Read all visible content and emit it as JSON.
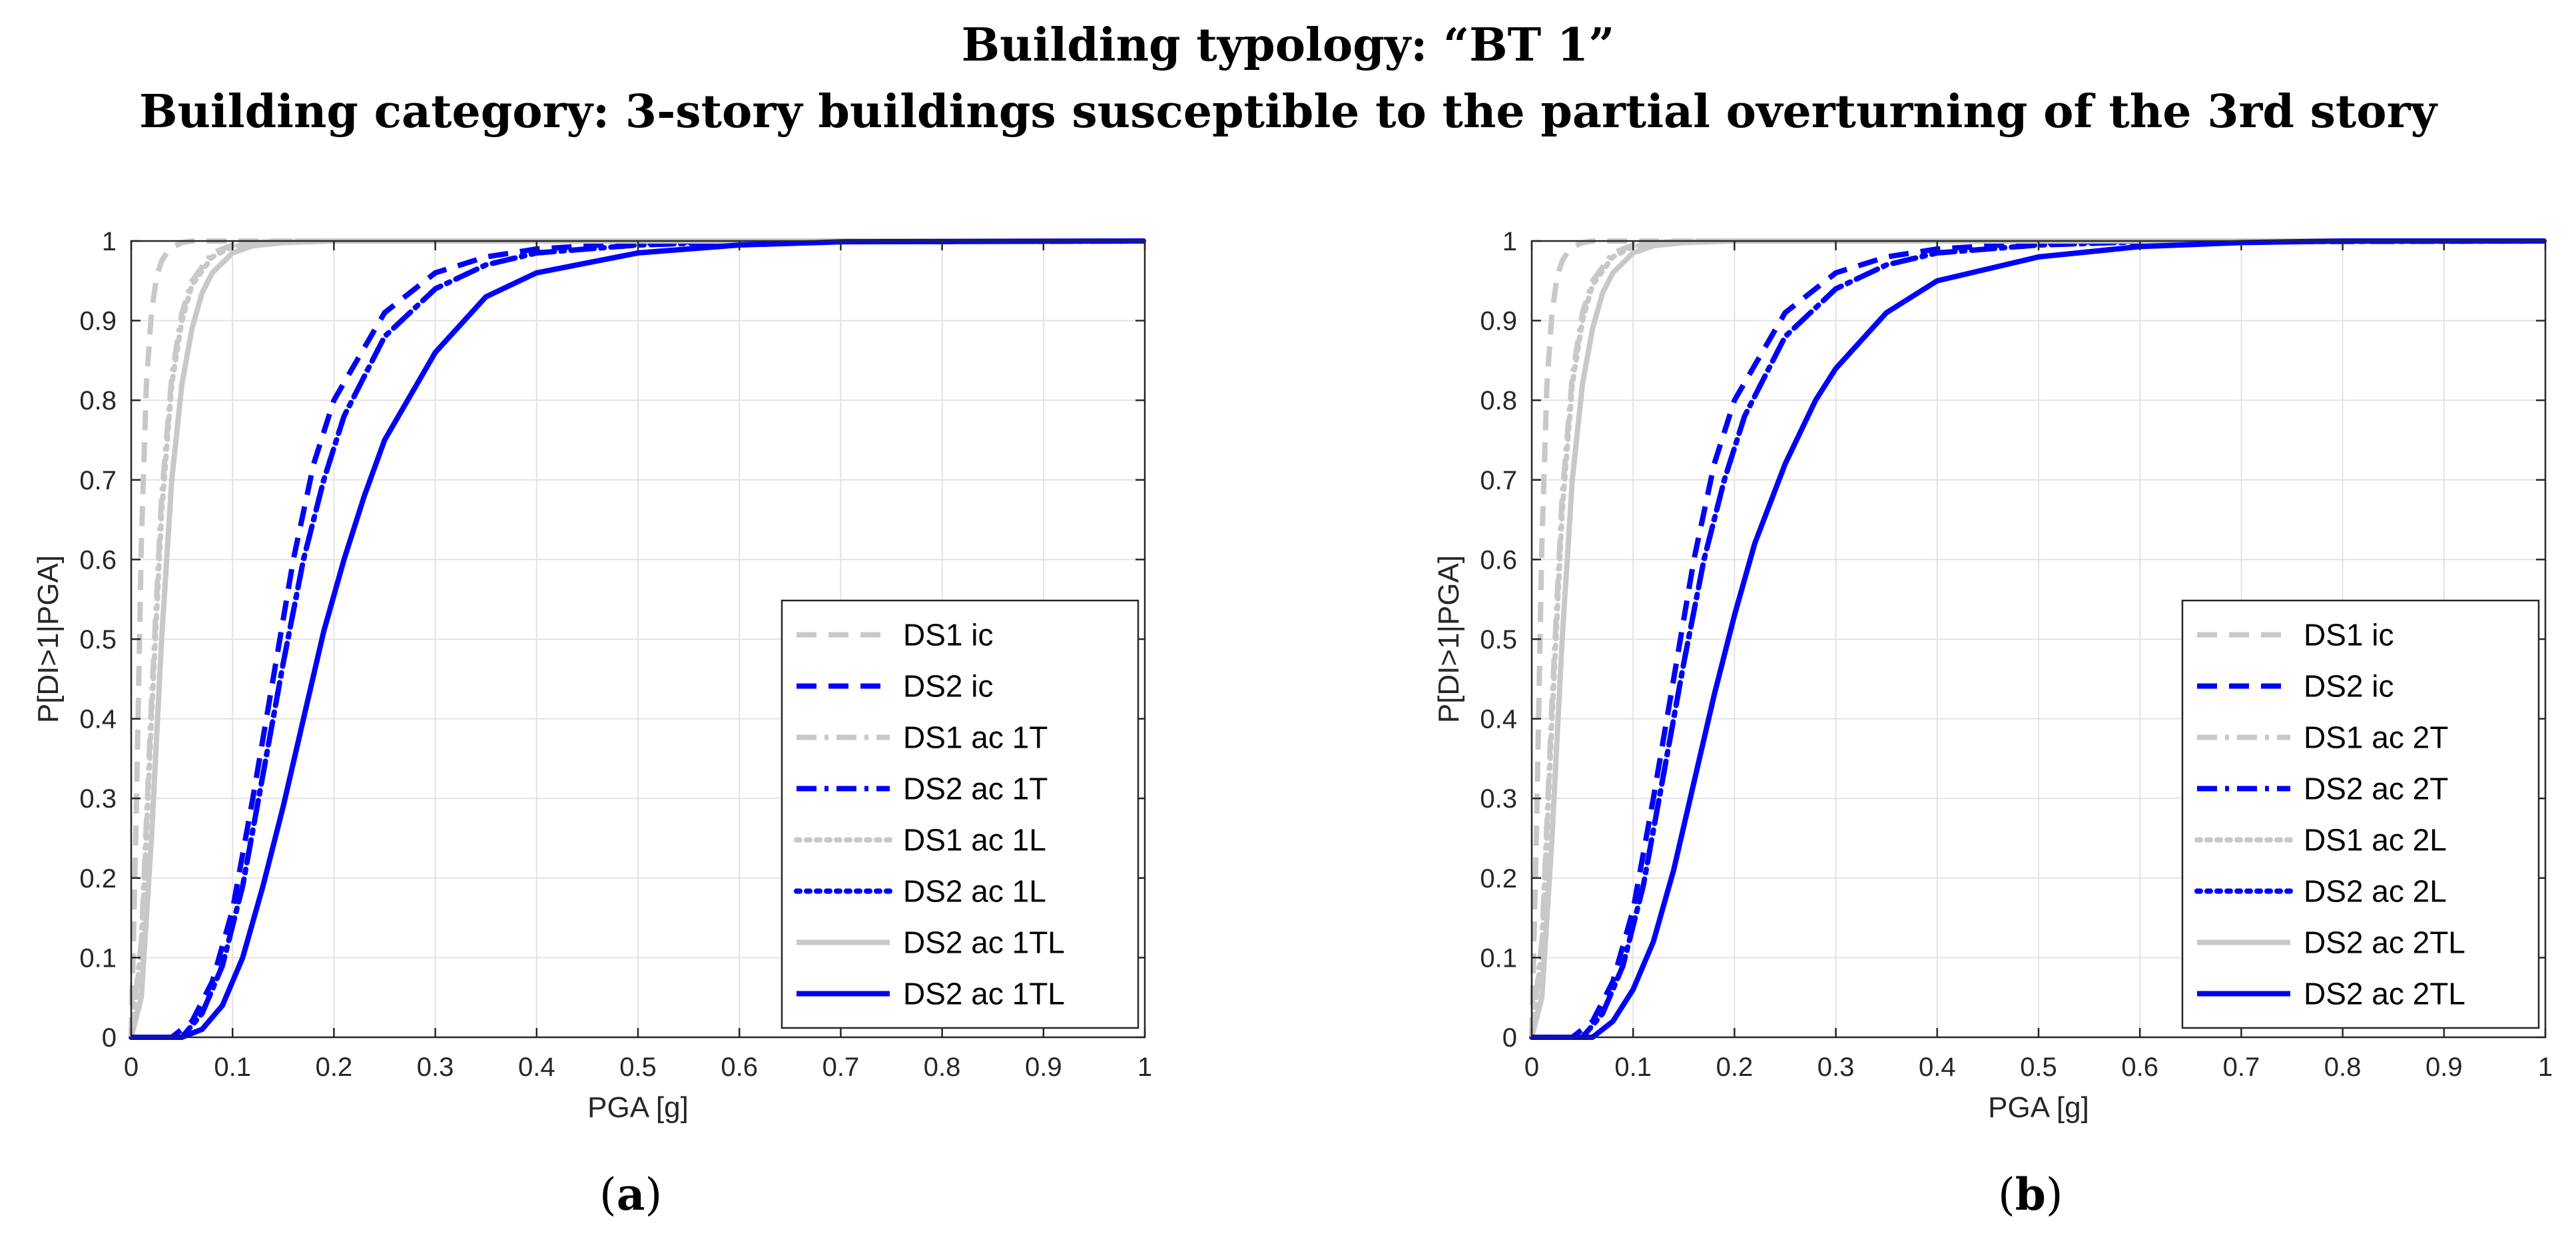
{
  "header": {
    "line1": "Building typology: “BT 1”",
    "line2": "Building category: 3-story buildings susceptible to the partial overturning of the 3rd story"
  },
  "panels": [
    {
      "label_open": "(",
      "label_letter": "a",
      "label_close": ")"
    },
    {
      "label_open": "(",
      "label_letter": "b",
      "label_close": ")"
    }
  ],
  "colors": {
    "gray": "#c8c8c8",
    "blue": "#0000ff",
    "grid": "#e3e3e3",
    "axis": "#262626"
  },
  "chart_data": [
    {
      "type": "line",
      "xlabel": "PGA [g]",
      "ylabel": "P[DI>1|PGA]",
      "xlim": [
        0,
        1
      ],
      "ylim": [
        0,
        1
      ],
      "xticks": [
        "0",
        "0.1",
        "0.2",
        "0.3",
        "0.4",
        "0.5",
        "0.6",
        "0.7",
        "0.8",
        "0.9",
        "1"
      ],
      "yticks": [
        "0",
        "0.1",
        "0.2",
        "0.3",
        "0.4",
        "0.5",
        "0.6",
        "0.7",
        "0.8",
        "0.9",
        "1"
      ],
      "grid": true,
      "legend_position": "bottom-right",
      "series": [
        {
          "name": "DS1 ic",
          "color": "gray",
          "style": "dashed",
          "x": [
            0,
            0.005,
            0.01,
            0.015,
            0.02,
            0.025,
            0.03,
            0.035,
            0.04,
            0.05,
            0.06,
            1
          ],
          "y": [
            0,
            0.28,
            0.62,
            0.82,
            0.91,
            0.955,
            0.975,
            0.985,
            0.992,
            0.998,
            1,
            1
          ]
        },
        {
          "name": "DS2 ic",
          "color": "blue",
          "style": "dashed",
          "x": [
            0,
            0.04,
            0.06,
            0.08,
            0.1,
            0.12,
            0.14,
            0.16,
            0.18,
            0.2,
            0.25,
            0.3,
            0.35,
            0.4,
            0.5,
            0.6,
            1
          ],
          "y": [
            0,
            0,
            0.02,
            0.07,
            0.16,
            0.3,
            0.45,
            0.6,
            0.72,
            0.8,
            0.91,
            0.96,
            0.98,
            0.99,
            0.998,
            1,
            1
          ]
        },
        {
          "name": "DS1 ac 1T",
          "color": "gray",
          "style": "dashdot",
          "x": [
            0,
            0.01,
            0.02,
            0.03,
            0.04,
            0.05,
            0.06,
            0.08,
            0.1,
            0.12,
            0.15,
            1
          ],
          "y": [
            0,
            0.12,
            0.42,
            0.68,
            0.83,
            0.91,
            0.95,
            0.985,
            0.995,
            0.998,
            1,
            1
          ]
        },
        {
          "name": "DS2 ac 1T",
          "color": "blue",
          "style": "dashdot",
          "x": [
            0,
            0.05,
            0.07,
            0.09,
            0.11,
            0.13,
            0.15,
            0.17,
            0.19,
            0.21,
            0.25,
            0.3,
            0.35,
            0.4,
            0.5,
            0.6,
            1
          ],
          "y": [
            0,
            0,
            0.03,
            0.09,
            0.19,
            0.33,
            0.47,
            0.6,
            0.7,
            0.78,
            0.88,
            0.94,
            0.97,
            0.985,
            0.995,
            0.999,
            1
          ]
        },
        {
          "name": "DS1 ac 1L",
          "color": "gray",
          "style": "dotted",
          "x": [
            0,
            0.01,
            0.02,
            0.03,
            0.04,
            0.05,
            0.06,
            0.08,
            0.1,
            0.12,
            0.15,
            1
          ],
          "y": [
            0,
            0.11,
            0.4,
            0.66,
            0.82,
            0.9,
            0.945,
            0.98,
            0.993,
            0.997,
            1,
            1
          ]
        },
        {
          "name": "DS2 ac 1L",
          "color": "blue",
          "style": "dotted",
          "x": [
            0,
            0.05,
            0.07,
            0.09,
            0.11,
            0.13,
            0.15,
            0.17,
            0.19,
            0.21,
            0.25,
            0.3,
            0.35,
            0.4,
            0.5,
            0.6,
            1
          ],
          "y": [
            0,
            0,
            0.03,
            0.09,
            0.19,
            0.33,
            0.47,
            0.6,
            0.7,
            0.78,
            0.88,
            0.94,
            0.97,
            0.985,
            0.995,
            0.999,
            1
          ]
        },
        {
          "name": "DS2 ac 1TL",
          "color": "gray",
          "style": "solid",
          "x": [
            0,
            0.01,
            0.02,
            0.03,
            0.04,
            0.05,
            0.06,
            0.07,
            0.08,
            0.1,
            0.12,
            0.15,
            0.2,
            1
          ],
          "y": [
            0,
            0.05,
            0.25,
            0.5,
            0.7,
            0.82,
            0.89,
            0.935,
            0.96,
            0.985,
            0.994,
            0.998,
            1,
            1
          ]
        },
        {
          "name": "DS2 ac 1TL",
          "color": "blue",
          "style": "solid",
          "x": [
            0,
            0.05,
            0.07,
            0.09,
            0.11,
            0.13,
            0.15,
            0.17,
            0.19,
            0.21,
            0.23,
            0.25,
            0.3,
            0.35,
            0.4,
            0.5,
            0.6,
            0.7,
            1
          ],
          "y": [
            0,
            0,
            0.01,
            0.04,
            0.1,
            0.19,
            0.29,
            0.4,
            0.51,
            0.6,
            0.68,
            0.75,
            0.86,
            0.93,
            0.96,
            0.985,
            0.995,
            0.999,
            1
          ]
        }
      ]
    },
    {
      "type": "line",
      "xlabel": "PGA [g]",
      "ylabel": "P[DI>1|PGA]",
      "xlim": [
        0,
        1
      ],
      "ylim": [
        0,
        1
      ],
      "xticks": [
        "0",
        "0.1",
        "0.2",
        "0.3",
        "0.4",
        "0.5",
        "0.6",
        "0.7",
        "0.8",
        "0.9",
        "1"
      ],
      "yticks": [
        "0",
        "0.1",
        "0.2",
        "0.3",
        "0.4",
        "0.5",
        "0.6",
        "0.7",
        "0.8",
        "0.9",
        "1"
      ],
      "grid": true,
      "legend_position": "bottom-right",
      "series": [
        {
          "name": "DS1 ic",
          "color": "gray",
          "style": "dashed",
          "x": [
            0,
            0.005,
            0.01,
            0.015,
            0.02,
            0.025,
            0.03,
            0.035,
            0.04,
            0.05,
            0.06,
            1
          ],
          "y": [
            0,
            0.28,
            0.62,
            0.82,
            0.91,
            0.955,
            0.975,
            0.985,
            0.992,
            0.998,
            1,
            1
          ]
        },
        {
          "name": "DS2 ic",
          "color": "blue",
          "style": "dashed",
          "x": [
            0,
            0.04,
            0.06,
            0.08,
            0.1,
            0.12,
            0.14,
            0.16,
            0.18,
            0.2,
            0.25,
            0.3,
            0.35,
            0.4,
            0.5,
            0.6,
            1
          ],
          "y": [
            0,
            0,
            0.02,
            0.07,
            0.16,
            0.3,
            0.45,
            0.6,
            0.72,
            0.8,
            0.91,
            0.96,
            0.98,
            0.99,
            0.998,
            1,
            1
          ]
        },
        {
          "name": "DS1 ac 2T",
          "color": "gray",
          "style": "dashdot",
          "x": [
            0,
            0.01,
            0.02,
            0.03,
            0.04,
            0.05,
            0.06,
            0.08,
            0.1,
            0.12,
            0.15,
            1
          ],
          "y": [
            0,
            0.12,
            0.42,
            0.68,
            0.83,
            0.91,
            0.95,
            0.985,
            0.995,
            0.998,
            1,
            1
          ]
        },
        {
          "name": "DS2 ac 2T",
          "color": "blue",
          "style": "dashdot",
          "x": [
            0,
            0.05,
            0.07,
            0.09,
            0.11,
            0.13,
            0.15,
            0.17,
            0.19,
            0.21,
            0.25,
            0.3,
            0.35,
            0.4,
            0.5,
            0.6,
            1
          ],
          "y": [
            0,
            0,
            0.03,
            0.09,
            0.19,
            0.33,
            0.47,
            0.6,
            0.7,
            0.78,
            0.88,
            0.94,
            0.97,
            0.985,
            0.995,
            0.999,
            1
          ]
        },
        {
          "name": "DS1 ac 2L",
          "color": "gray",
          "style": "dotted",
          "x": [
            0,
            0.01,
            0.02,
            0.03,
            0.04,
            0.05,
            0.06,
            0.08,
            0.1,
            0.12,
            0.15,
            1
          ],
          "y": [
            0,
            0.11,
            0.4,
            0.66,
            0.82,
            0.9,
            0.945,
            0.98,
            0.993,
            0.997,
            1,
            1
          ]
        },
        {
          "name": "DS2 ac 2L",
          "color": "blue",
          "style": "dotted",
          "x": [
            0,
            0.05,
            0.07,
            0.09,
            0.11,
            0.13,
            0.15,
            0.17,
            0.19,
            0.21,
            0.25,
            0.3,
            0.35,
            0.4,
            0.5,
            0.6,
            1
          ],
          "y": [
            0,
            0,
            0.03,
            0.09,
            0.19,
            0.33,
            0.47,
            0.6,
            0.7,
            0.78,
            0.88,
            0.94,
            0.97,
            0.985,
            0.995,
            0.999,
            1
          ]
        },
        {
          "name": "DS2 ac 2TL",
          "color": "gray",
          "style": "solid",
          "x": [
            0,
            0.01,
            0.02,
            0.03,
            0.04,
            0.05,
            0.06,
            0.07,
            0.08,
            0.1,
            0.12,
            0.15,
            0.2,
            1
          ],
          "y": [
            0,
            0.05,
            0.25,
            0.5,
            0.7,
            0.82,
            0.89,
            0.935,
            0.96,
            0.985,
            0.994,
            0.998,
            1,
            1
          ]
        },
        {
          "name": "DS2 ac 2TL",
          "color": "blue",
          "style": "solid",
          "x": [
            0,
            0.06,
            0.08,
            0.1,
            0.12,
            0.14,
            0.16,
            0.18,
            0.2,
            0.22,
            0.25,
            0.28,
            0.3,
            0.35,
            0.4,
            0.5,
            0.6,
            0.7,
            0.8,
            1
          ],
          "y": [
            0,
            0,
            0.02,
            0.06,
            0.12,
            0.21,
            0.32,
            0.43,
            0.53,
            0.62,
            0.72,
            0.8,
            0.84,
            0.91,
            0.95,
            0.98,
            0.993,
            0.998,
            1,
            1
          ]
        }
      ]
    }
  ]
}
